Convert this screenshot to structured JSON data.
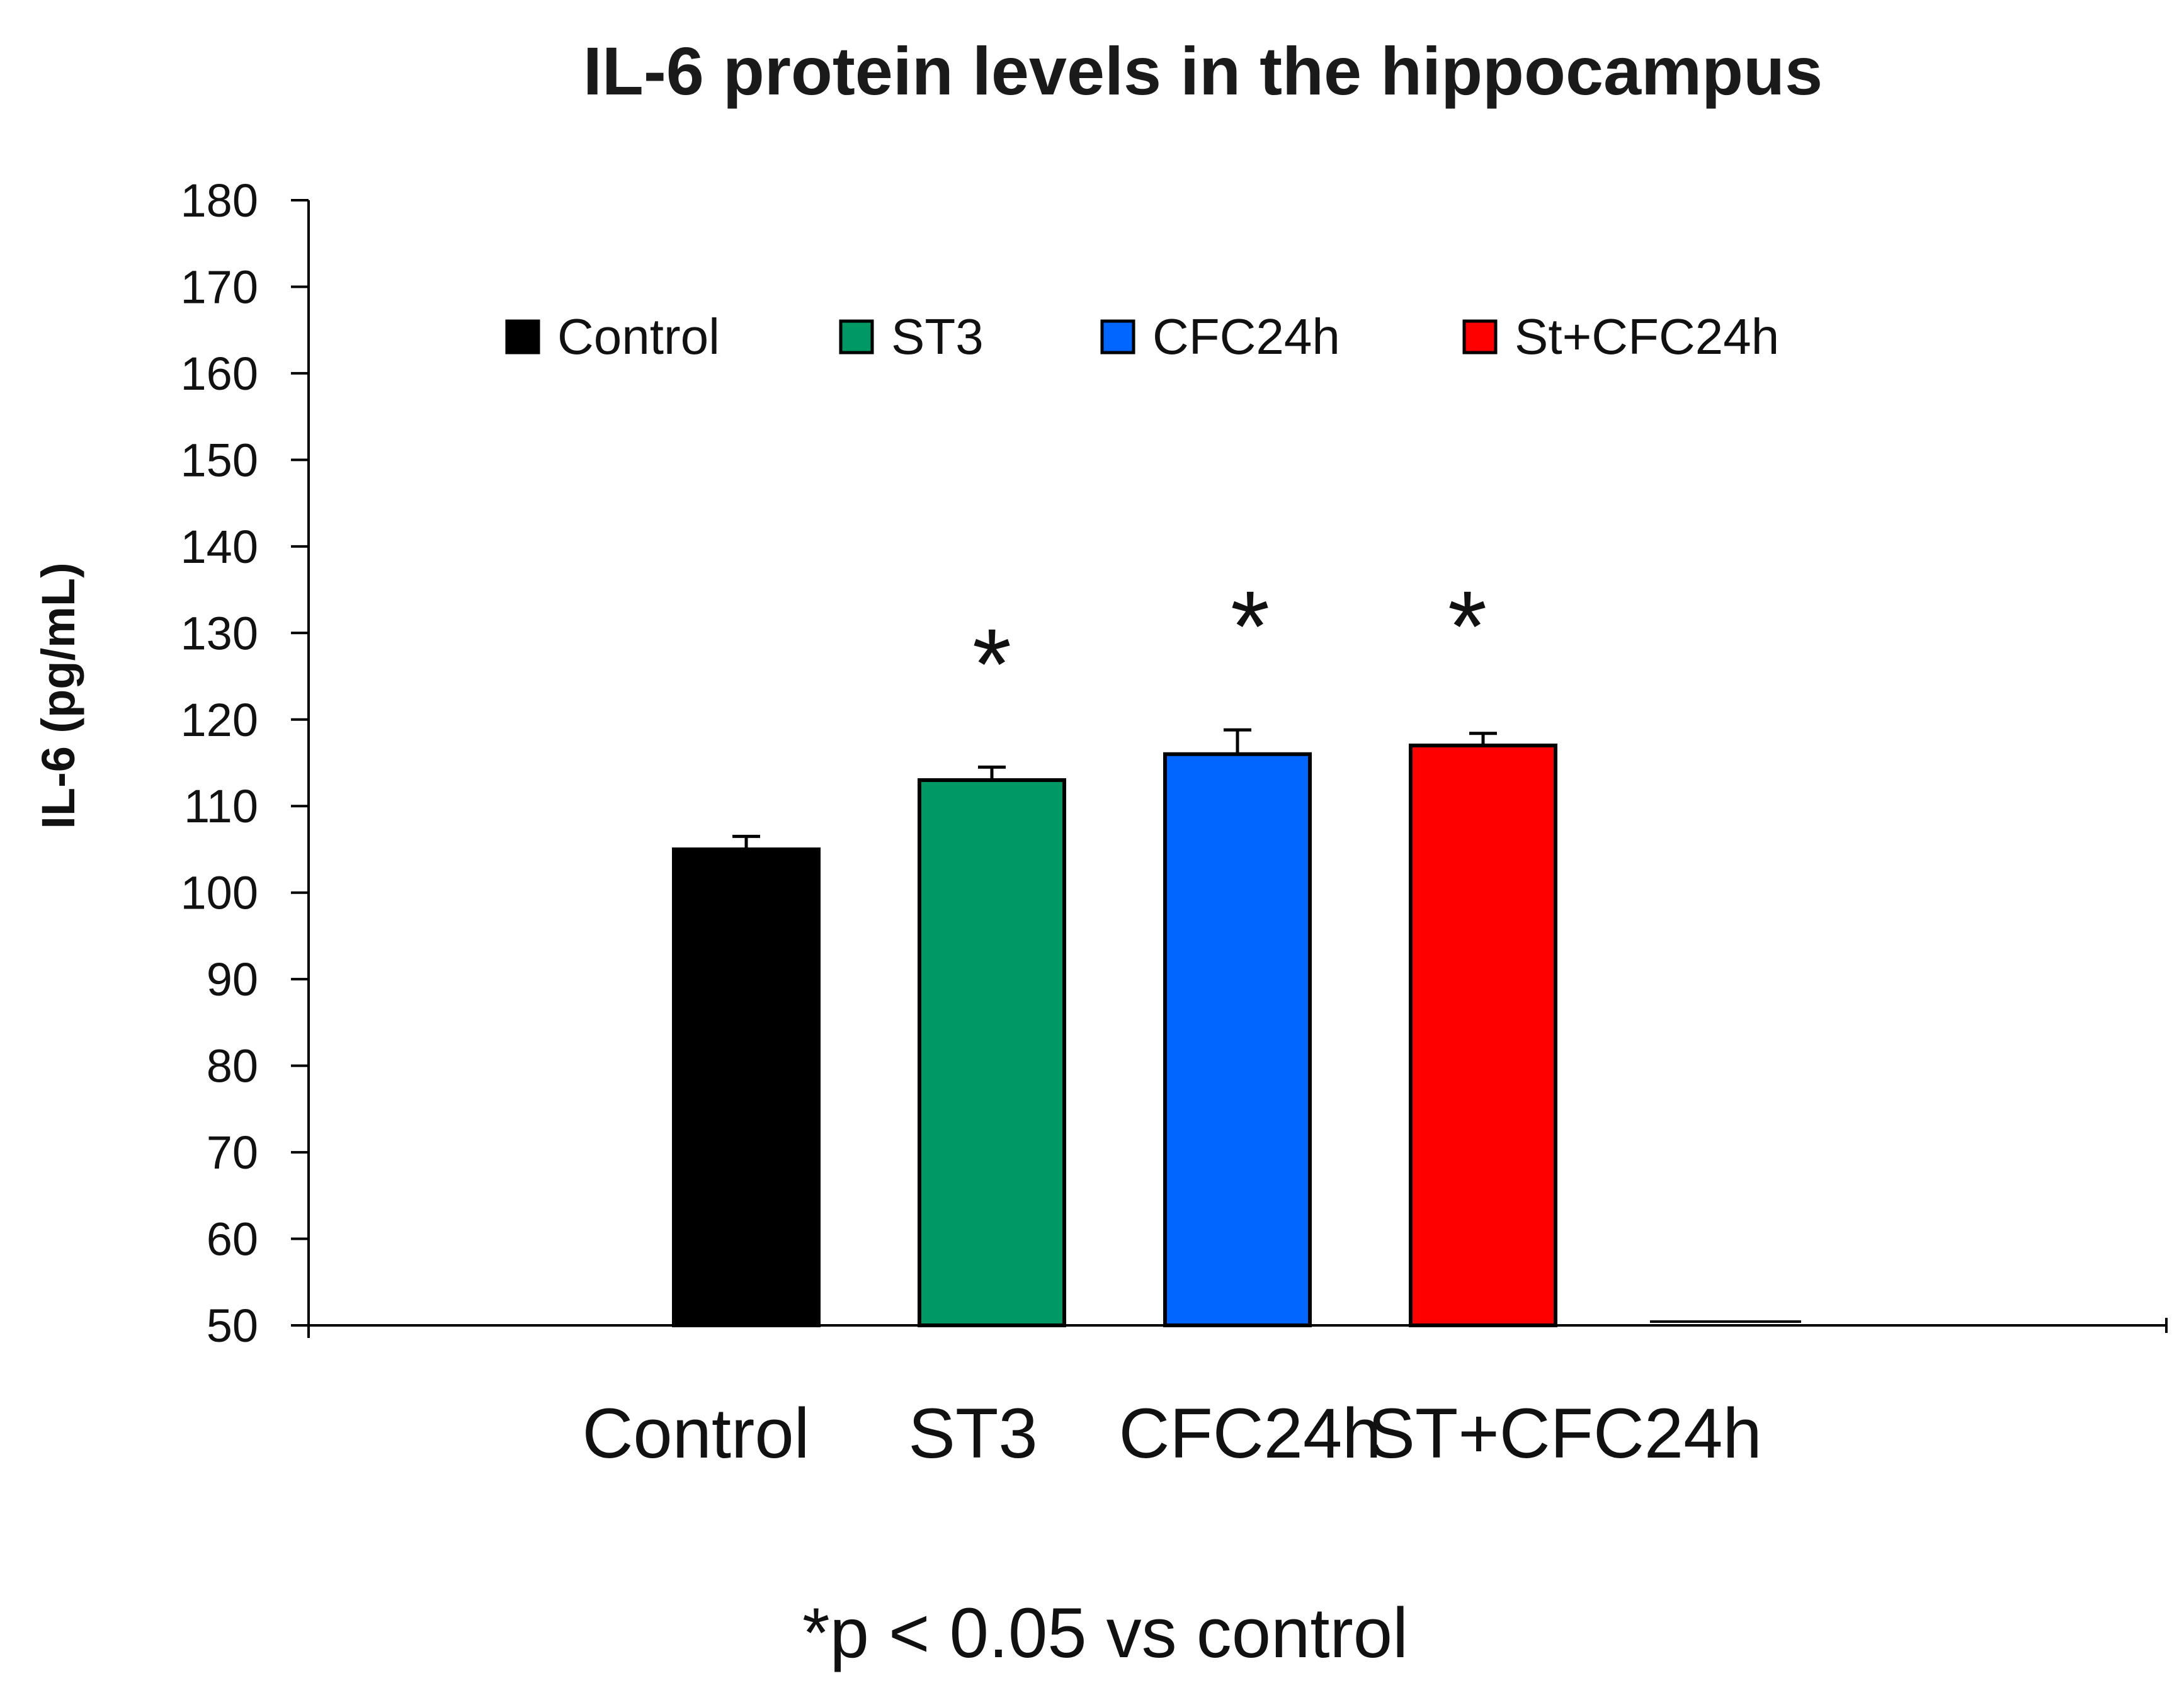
{
  "chart_data": {
    "type": "bar",
    "title": "IL-6 protein levels in the hippocampus",
    "ylabel": "IL-6  (pg/mL)",
    "xlabel": "",
    "ylim": [
      50,
      180
    ],
    "yticks": [
      50,
      60,
      70,
      80,
      90,
      100,
      110,
      120,
      130,
      140,
      150,
      160,
      170,
      180
    ],
    "categories": [
      "Control",
      "ST3",
      "CFC24h",
      "ST+CFC24h"
    ],
    "values": [
      105,
      113,
      116,
      117
    ],
    "errors": [
      1.5,
      1.5,
      2.8,
      1.4
    ],
    "colors": [
      "#000000",
      "#009966",
      "#0066FF",
      "#FF0000"
    ],
    "significance": [
      "",
      "*",
      "*",
      "*"
    ],
    "legend": {
      "position": "top",
      "entries": [
        "Control",
        "ST3",
        "CFC24h",
        "St+CFC24h"
      ]
    },
    "footnote": "*p < 0.05 vs control",
    "grid": false
  }
}
